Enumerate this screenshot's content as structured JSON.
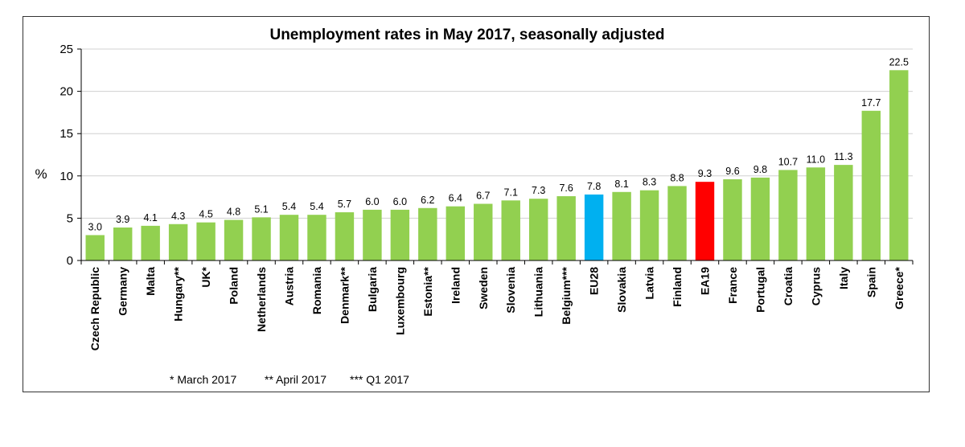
{
  "chart_data": {
    "type": "bar",
    "title": "Unemployment rates in May 2017, seasonally adjusted",
    "ylabel": "%",
    "ylim": [
      0,
      25
    ],
    "yticks": [
      0,
      5,
      10,
      15,
      20,
      25
    ],
    "grid": true,
    "categories": [
      "Czech Republic",
      "Germany",
      "Malta",
      "Hungary**",
      "UK*",
      "Poland",
      "Netherlands",
      "Austria",
      "Romania",
      "Denmark**",
      "Bulgaria",
      "Luxembourg",
      "Estonia**",
      "Ireland",
      "Sweden",
      "Slovenia",
      "Lithuania",
      "Belgium***",
      "EU28",
      "Slovakia",
      "Latvia",
      "Finland",
      "EA19",
      "France",
      "Portugal",
      "Croatia",
      "Cyprus",
      "Italy",
      "Spain",
      "Greece*"
    ],
    "values": [
      3.0,
      3.9,
      4.1,
      4.3,
      4.5,
      4.8,
      5.1,
      5.4,
      5.4,
      5.7,
      6.0,
      6.0,
      6.2,
      6.4,
      6.7,
      7.1,
      7.3,
      7.6,
      7.8,
      8.1,
      8.3,
      8.8,
      9.3,
      9.6,
      9.8,
      10.7,
      11.0,
      11.3,
      17.7,
      22.5
    ],
    "value_labels": [
      "3.0",
      "3.9",
      "4.1",
      "4.3",
      "4.5",
      "4.8",
      "5.1",
      "5.4",
      "5.4",
      "5.7",
      "6.0",
      "6.0",
      "6.2",
      "6.4",
      "6.7",
      "7.1",
      "7.3",
      "7.6",
      "7.8",
      "8.1",
      "8.3",
      "8.8",
      "9.3",
      "9.6",
      "9.8",
      "10.7",
      "11.0",
      "11.3",
      "17.7",
      "22.5"
    ],
    "colors": {
      "default": "#92d050",
      "highlight": {
        "EU28": "#00b0f0",
        "EA19": "#ff0000"
      }
    },
    "footnotes": [
      "* March 2017",
      "** April 2017",
      "*** Q1 2017"
    ]
  }
}
